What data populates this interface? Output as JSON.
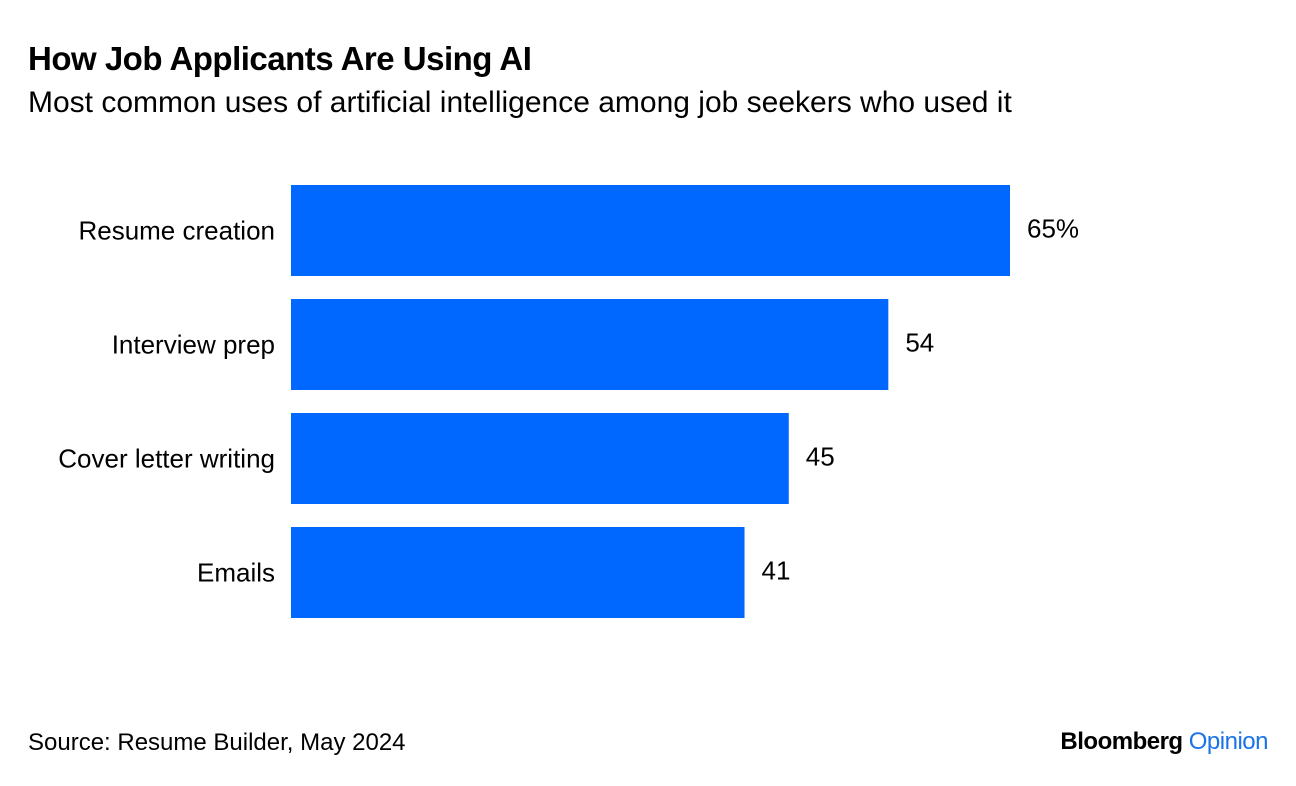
{
  "header": {
    "title": "How Job Applicants Are Using AI",
    "subtitle": "Most common uses of artificial intelligence among job seekers who used it"
  },
  "footer": {
    "source": "Source: Resume Builder, May 2024",
    "brand_primary": "Bloomberg",
    "brand_secondary": "Opinion"
  },
  "colors": {
    "bar": "#0068ff",
    "brand_secondary": "#1a73e8"
  },
  "chart_data": {
    "type": "bar",
    "orientation": "horizontal",
    "title": "How Job Applicants Are Using AI",
    "subtitle": "Most common uses of artificial intelligence among job seekers who used it",
    "categories": [
      "Resume creation",
      "Interview prep",
      "Cover letter writing",
      "Emails"
    ],
    "values": [
      65,
      54,
      45,
      41
    ],
    "value_labels": [
      "65%",
      "54",
      "45",
      "41"
    ],
    "unit": "%",
    "xlim": [
      0,
      65
    ],
    "grid": false,
    "legend": "none"
  }
}
